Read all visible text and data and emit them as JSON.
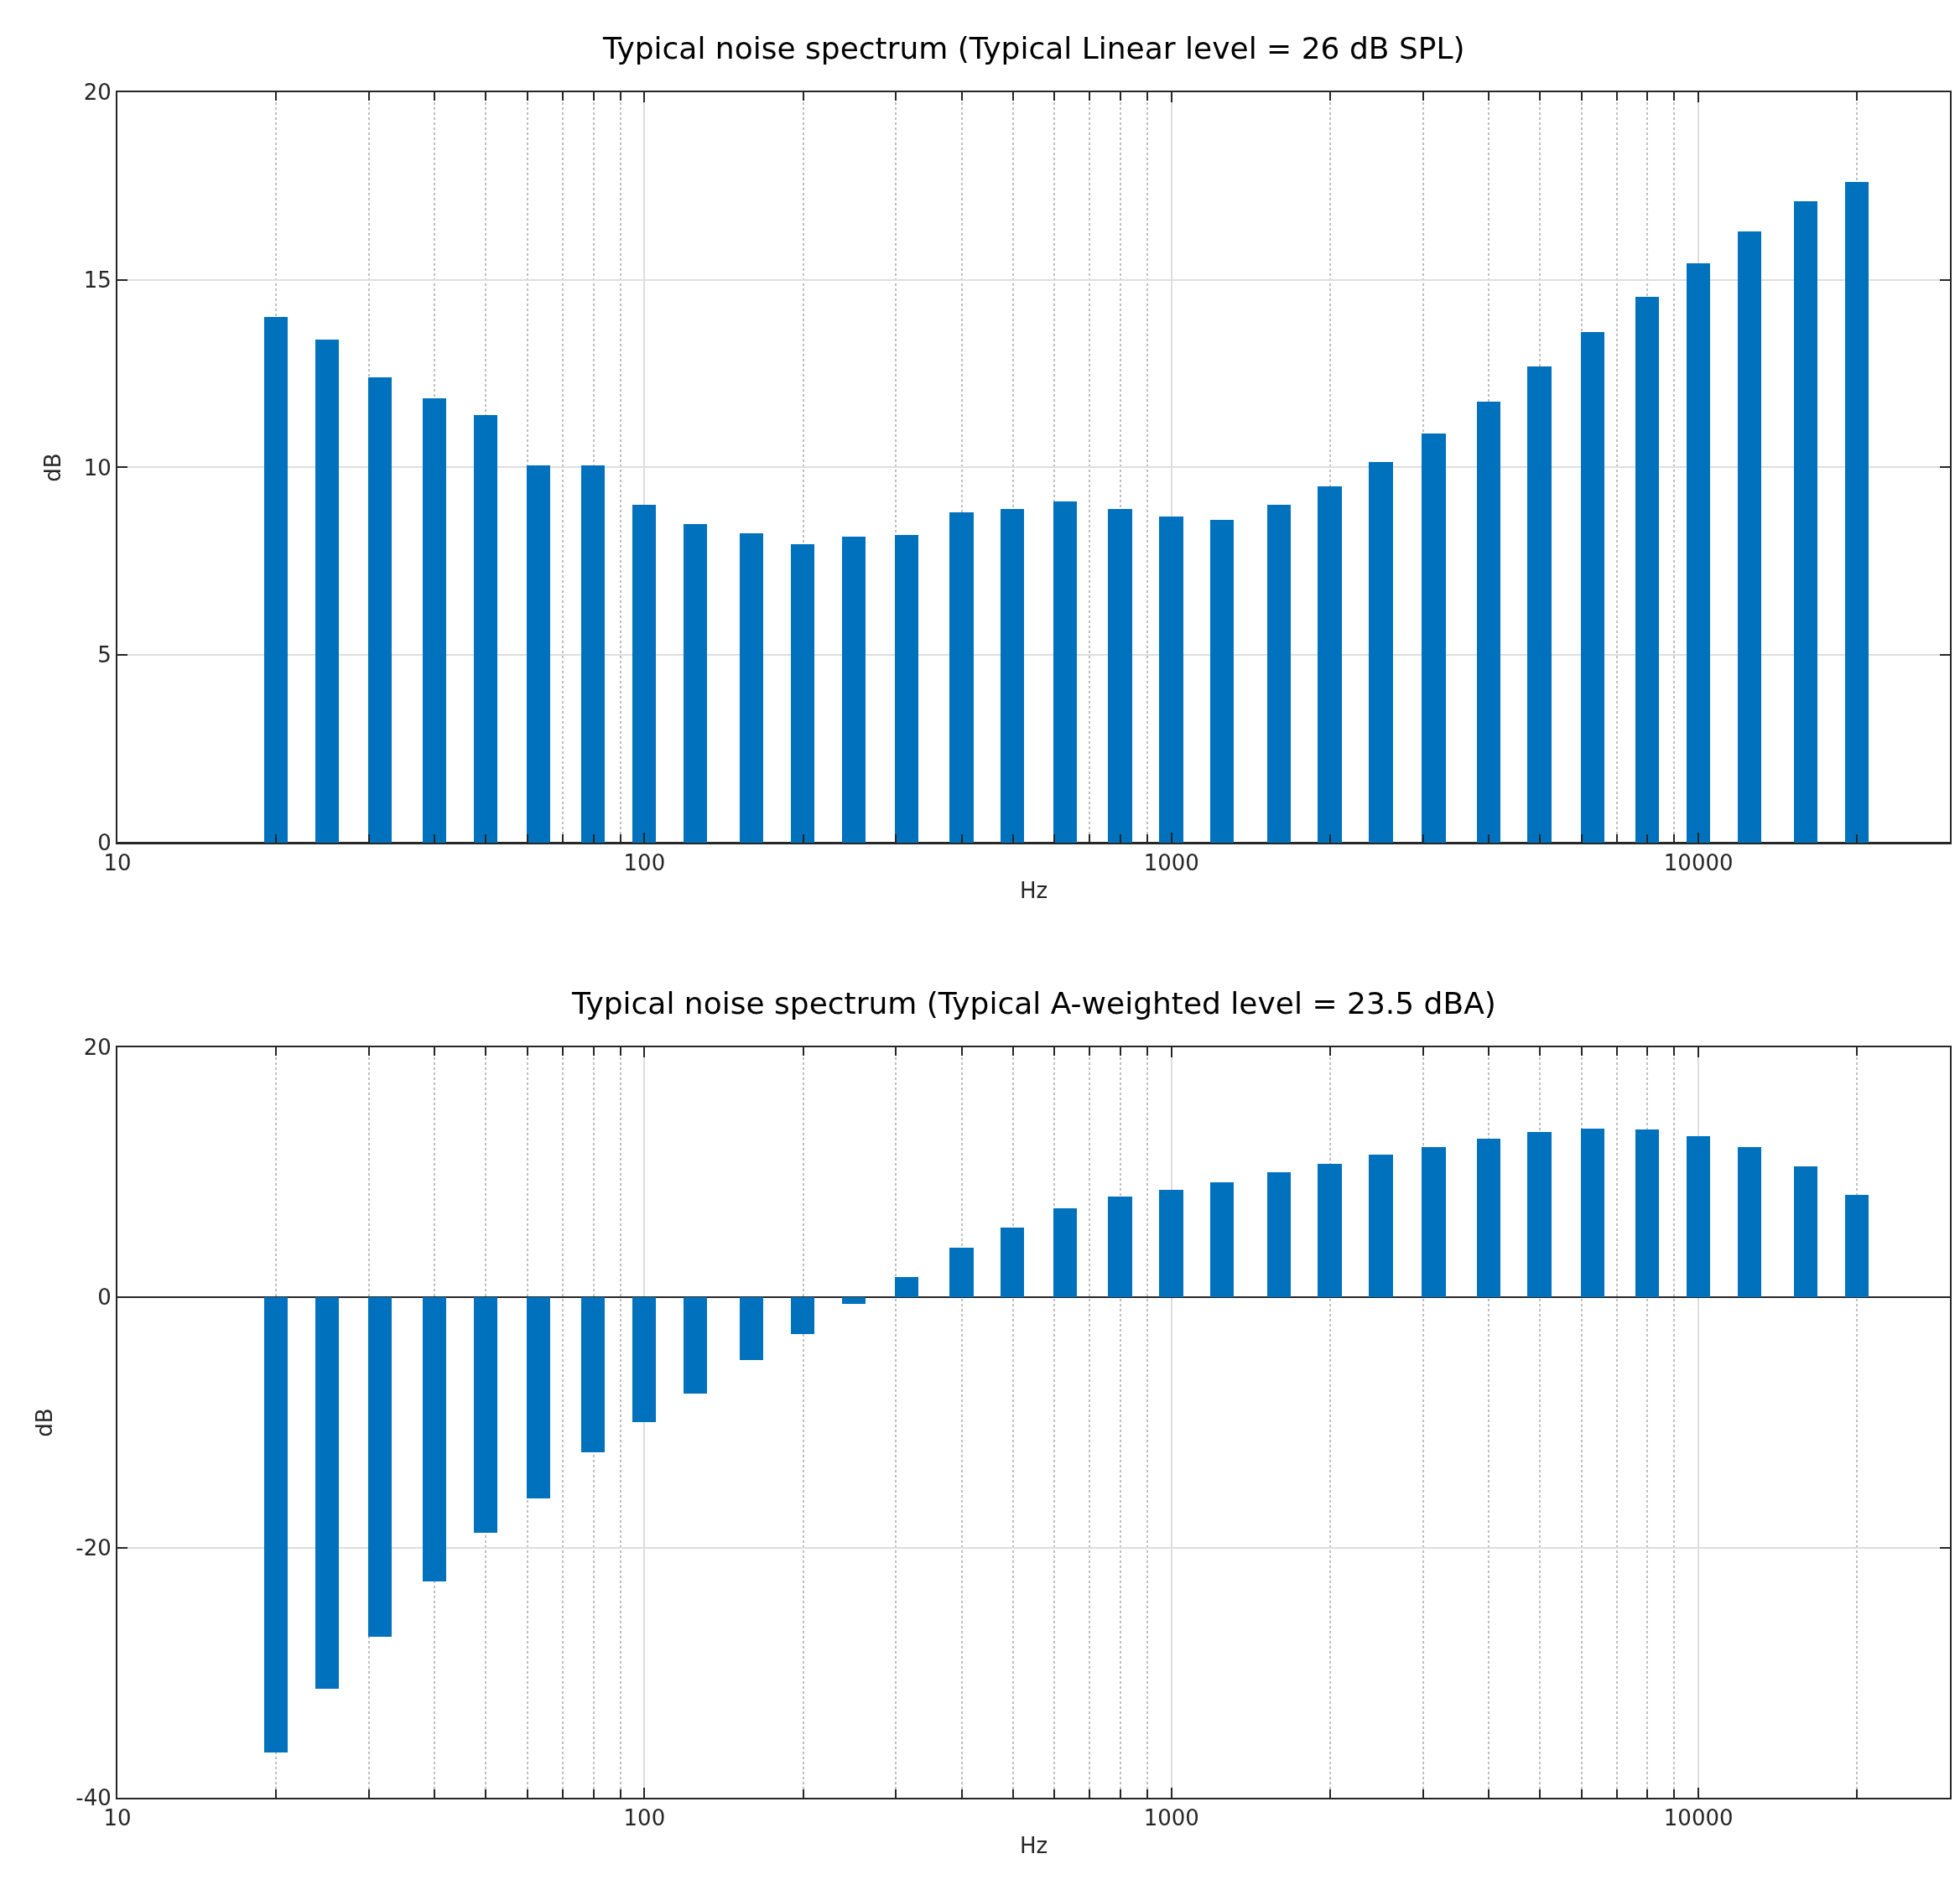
{
  "chart_data": [
    {
      "type": "bar",
      "title": "Typical noise spectrum (Typical Linear level = 26 dB SPL)",
      "xlabel": "Hz",
      "ylabel": "dB",
      "log": "x",
      "grid": true,
      "color": "#0072bd",
      "x": [
        20,
        25,
        31.5,
        40,
        50,
        63,
        80,
        100,
        125,
        160,
        200,
        250,
        315,
        400,
        500,
        630,
        800,
        1000,
        1250,
        1600,
        2000,
        2500,
        3150,
        4000,
        5000,
        6300,
        8000,
        10000,
        12500,
        16000,
        20000
      ],
      "values": [
        14.0,
        13.4,
        12.4,
        11.85,
        11.4,
        10.05,
        10.05,
        9.0,
        8.5,
        8.25,
        7.95,
        8.15,
        8.2,
        8.8,
        8.9,
        9.1,
        8.9,
        8.7,
        8.6,
        9.0,
        9.5,
        10.15,
        10.9,
        11.75,
        12.7,
        13.6,
        14.55,
        15.45,
        16.3,
        17.1,
        17.6
      ],
      "xlim": [
        10,
        30000
      ],
      "ylim": [
        0,
        20
      ],
      "yticks": [
        0,
        5,
        10,
        15,
        20
      ],
      "xticks": [
        10,
        {
          "value": 20,
          "label": null
        },
        {
          "value": 30,
          "label": null
        },
        {
          "value": 40,
          "label": null
        },
        {
          "value": 50,
          "label": null
        },
        {
          "value": 60,
          "label": null
        },
        {
          "value": 70,
          "label": null
        },
        {
          "value": 80,
          "label": null
        },
        {
          "value": 90,
          "label": null
        },
        100,
        {
          "value": 200,
          "label": null
        },
        {
          "value": 300,
          "label": null
        },
        {
          "value": 400,
          "label": null
        },
        {
          "value": 500,
          "label": null
        },
        {
          "value": 600,
          "label": null
        },
        {
          "value": 700,
          "label": null
        },
        {
          "value": 800,
          "label": null
        },
        {
          "value": 900,
          "label": null
        },
        1000,
        {
          "value": 2000,
          "label": null
        },
        {
          "value": 3000,
          "label": null
        },
        {
          "value": 4000,
          "label": null
        },
        {
          "value": 5000,
          "label": null
        },
        {
          "value": 6000,
          "label": null
        },
        {
          "value": 7000,
          "label": null
        },
        {
          "value": 8000,
          "label": null
        },
        {
          "value": 9000,
          "label": null
        },
        10000,
        {
          "value": 20000,
          "label": null
        }
      ]
    },
    {
      "type": "bar",
      "title": "Typical noise spectrum (Typical A-weighted level = 23.5 dBA)",
      "xlabel": "Hz",
      "ylabel": "dB",
      "log": "x",
      "grid": true,
      "color": "#0072bd",
      "x": [
        20,
        25,
        31.5,
        40,
        50,
        63,
        80,
        100,
        125,
        160,
        200,
        250,
        315,
        400,
        500,
        630,
        800,
        1000,
        1250,
        1600,
        2000,
        2500,
        3150,
        4000,
        5000,
        6300,
        8000,
        10000,
        12500,
        16000,
        20000
      ],
      "values": [
        -36.4,
        -31.3,
        -27.1,
        -22.7,
        -18.8,
        -16.1,
        -12.4,
        -10.0,
        -7.7,
        -5.0,
        -2.9,
        -0.5,
        1.6,
        4.0,
        5.6,
        7.1,
        8.1,
        8.6,
        9.2,
        10.0,
        10.7,
        11.4,
        12.0,
        12.7,
        13.2,
        13.5,
        13.4,
        12.9,
        12.0,
        10.5,
        8.2
      ],
      "xlim": [
        10,
        30000
      ],
      "ylim": [
        -40,
        20
      ],
      "yticks": [
        -40,
        -20,
        0,
        20
      ],
      "xticks": [
        10,
        {
          "value": 20,
          "label": null
        },
        {
          "value": 30,
          "label": null
        },
        {
          "value": 40,
          "label": null
        },
        {
          "value": 50,
          "label": null
        },
        {
          "value": 60,
          "label": null
        },
        {
          "value": 70,
          "label": null
        },
        {
          "value": 80,
          "label": null
        },
        {
          "value": 90,
          "label": null
        },
        100,
        {
          "value": 200,
          "label": null
        },
        {
          "value": 300,
          "label": null
        },
        {
          "value": 400,
          "label": null
        },
        {
          "value": 500,
          "label": null
        },
        {
          "value": 600,
          "label": null
        },
        {
          "value": 700,
          "label": null
        },
        {
          "value": 800,
          "label": null
        },
        {
          "value": 900,
          "label": null
        },
        1000,
        {
          "value": 2000,
          "label": null
        },
        {
          "value": 3000,
          "label": null
        },
        {
          "value": 4000,
          "label": null
        },
        {
          "value": 5000,
          "label": null
        },
        {
          "value": 6000,
          "label": null
        },
        {
          "value": 7000,
          "label": null
        },
        {
          "value": 8000,
          "label": null
        },
        {
          "value": 9000,
          "label": null
        },
        10000,
        {
          "value": 20000,
          "label": null
        }
      ]
    }
  ]
}
